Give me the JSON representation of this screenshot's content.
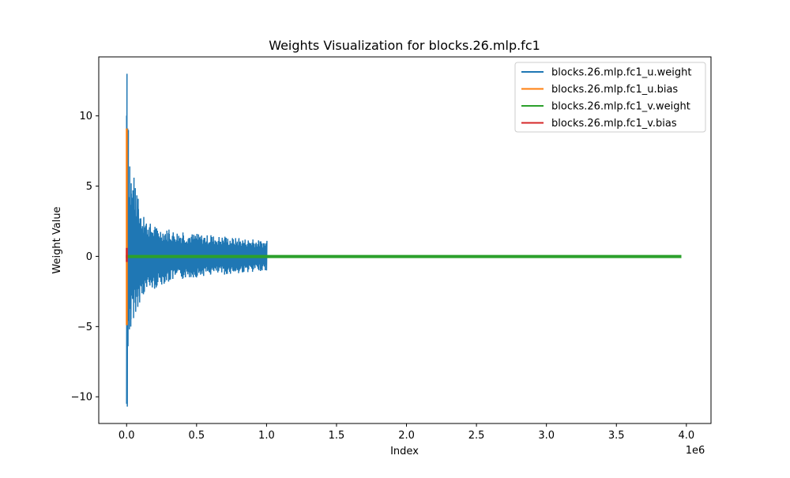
{
  "chart_data": {
    "type": "line",
    "title": "Weights Visualization for blocks.26.mlp.fc1",
    "xlabel": "Index",
    "ylabel": "Weight Value",
    "x_offset_label": "1e6",
    "xlim": [
      -0.199,
      4.176
    ],
    "ylim": [
      -11.9,
      14.2
    ],
    "x_ticks": [
      0.0,
      0.5,
      1.0,
      1.5,
      2.0,
      2.5,
      3.0,
      3.5,
      4.0
    ],
    "x_tick_labels": [
      "0.0",
      "0.5",
      "1.0",
      "1.5",
      "2.0",
      "2.5",
      "3.0",
      "3.5",
      "4.0"
    ],
    "y_ticks": [
      -10,
      -5,
      0,
      5,
      10
    ],
    "y_tick_labels": [
      "−10",
      "−5",
      "0",
      "5",
      "10"
    ],
    "legend_position": "top-right",
    "grid": false,
    "series": [
      {
        "name": "blocks.26.mlp.fc1_u.weight",
        "color": "#1f77b4",
        "x_range": [
          0,
          1.0
        ],
        "envelope_x": [
          0.0,
          0.005,
          0.01,
          0.02,
          0.03,
          0.05,
          0.08,
          0.12,
          0.2,
          0.3,
          0.4,
          0.5,
          0.6,
          0.7,
          0.8,
          0.9,
          1.0
        ],
        "envelope_upper": [
          13.0,
          9.1,
          9.0,
          6.4,
          5.2,
          5.6,
          4.1,
          2.8,
          2.1,
          1.9,
          1.7,
          1.6,
          1.5,
          1.4,
          1.3,
          1.2,
          1.1
        ],
        "envelope_lower": [
          -10.5,
          -10.7,
          -6.4,
          -5.2,
          -5.0,
          -4.4,
          -3.6,
          -2.7,
          -2.3,
          -1.8,
          -1.6,
          -1.5,
          -1.3,
          -1.3,
          -1.2,
          -1.1,
          -1.0
        ]
      },
      {
        "name": "blocks.26.mlp.fc1_u.bias",
        "color": "#ff7f0e",
        "x_range": [
          0,
          0.004
        ],
        "min": -4.9,
        "max": 9.1
      },
      {
        "name": "blocks.26.mlp.fc1_v.weight",
        "color": "#2ca02c",
        "x_range": [
          0.0,
          3.97
        ],
        "min": -0.1,
        "max": 0.1
      },
      {
        "name": "blocks.26.mlp.fc1_v.bias",
        "color": "#d62728",
        "x_range": [
          0,
          0.001
        ],
        "min": -0.4,
        "max": 0.6
      }
    ]
  }
}
